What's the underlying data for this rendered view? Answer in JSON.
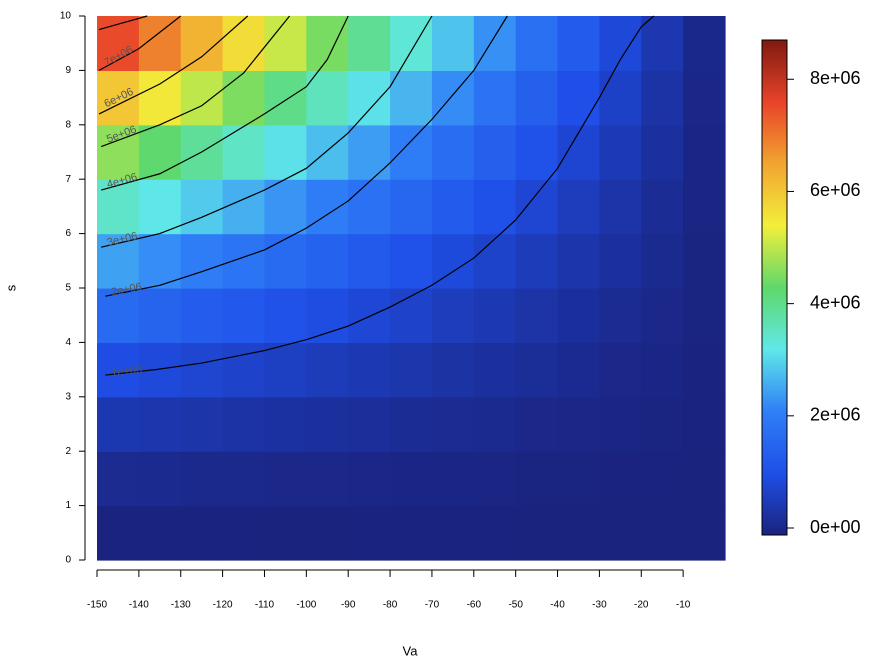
{
  "chart_data": {
    "type": "heatmap",
    "x_label": "Va",
    "y_label": "s",
    "x": [
      -145,
      -135,
      -125,
      -115,
      -105,
      -95,
      -85,
      -75,
      -65,
      -55,
      -45,
      -35,
      -25,
      -15,
      -5
    ],
    "y": [
      0.5,
      1.5,
      2.5,
      3.5,
      4.5,
      5.5,
      6.5,
      7.5,
      8.5,
      9.5
    ],
    "z": [
      [
        21000,
        19000,
        17000,
        16000,
        14000,
        13000,
        11000,
        9000,
        8000,
        7000,
        5000,
        4000,
        3000,
        1000,
        0
      ],
      [
        188000,
        173000,
        157000,
        142000,
        128000,
        113000,
        99000,
        85000,
        72000,
        59000,
        46000,
        34000,
        23000,
        12000,
        3000
      ],
      [
        522000,
        479000,
        437000,
        396000,
        354000,
        314000,
        276000,
        237000,
        200000,
        164000,
        128000,
        94000,
        64000,
        35000,
        9000
      ],
      [
        1023000,
        940000,
        856000,
        775000,
        695000,
        616000,
        540000,
        464000,
        392000,
        321000,
        250000,
        185000,
        125000,
        68000,
        18000
      ],
      [
        1691000,
        1553000,
        1415000,
        1282000,
        1148000,
        1019000,
        893000,
        767000,
        648000,
        531000,
        413000,
        306000,
        207000,
        112000,
        30000
      ],
      [
        2526000,
        2320000,
        2114000,
        1915000,
        1715000,
        1522000,
        1334000,
        1146000,
        968000,
        793000,
        617000,
        457000,
        309000,
        168000,
        45000
      ],
      [
        3528000,
        3241000,
        2953000,
        2674000,
        2396000,
        2125000,
        1863000,
        1601000,
        1352000,
        1107000,
        862000,
        638000,
        431000,
        234000,
        63000
      ],
      [
        4697000,
        4314000,
        3932000,
        3561000,
        3189000,
        2829000,
        2481000,
        2132000,
        1800000,
        1474000,
        1148000,
        849000,
        574000,
        312000,
        84000
      ],
      [
        6033000,
        5542000,
        5050000,
        4573000,
        4097000,
        3634000,
        3186000,
        2738000,
        2312000,
        1893000,
        1474000,
        1091000,
        737000,
        400000,
        108000
      ],
      [
        7536000,
        6922000,
        6308000,
        5713000,
        5117000,
        4540000,
        3980000,
        3420000,
        2888000,
        2365000,
        1841000,
        1363000,
        921000,
        500000,
        134000
      ]
    ],
    "xlim": [
      -150,
      0
    ],
    "ylim": [
      0,
      10
    ],
    "zlim": [
      0,
      8700000
    ],
    "xticks": [
      -150,
      -140,
      -130,
      -120,
      -110,
      -100,
      -90,
      -80,
      -70,
      -60,
      -50,
      -40,
      -30,
      -20,
      -10
    ],
    "yticks": [
      0,
      1,
      2,
      3,
      4,
      5,
      6,
      7,
      8,
      9,
      10
    ],
    "zticks": [
      {
        "value": 0,
        "label": "0e+00"
      },
      {
        "value": 2000000,
        "label": "2e+06"
      },
      {
        "value": 4000000,
        "label": "4e+06"
      },
      {
        "value": 6000000,
        "label": "6e+06"
      },
      {
        "value": 8000000,
        "label": "8e+06"
      }
    ],
    "colors": [
      "#1a237e",
      "#1f4fe8",
      "#2f7ff7",
      "#5fe8e8",
      "#5fd86a",
      "#f2ef3a",
      "#f2a430",
      "#e8432a",
      "#7f1a10"
    ],
    "contour_color": "#000000",
    "contours": [
      {
        "label": "1e+06",
        "x": [
          -148,
          -136,
          -125,
          -110,
          -100,
          -90,
          -80,
          -70,
          -60,
          -50,
          -40,
          -30,
          -25,
          -20,
          -17
        ],
        "y": [
          3.4,
          3.5,
          3.62,
          3.85,
          4.05,
          4.3,
          4.65,
          5.05,
          5.55,
          6.25,
          7.2,
          8.5,
          9.2,
          9.8,
          10
        ]
      },
      {
        "label": "2e+06",
        "x": [
          -148,
          -135,
          -125,
          -110,
          -100,
          -90,
          -80,
          -70,
          -60,
          -52
        ],
        "y": [
          4.85,
          5.05,
          5.3,
          5.7,
          6.1,
          6.6,
          7.3,
          8.1,
          9.0,
          10
        ]
      },
      {
        "label": "3e+06",
        "x": [
          -149,
          -135,
          -125,
          -110,
          -100,
          -90,
          -80,
          -70
        ],
        "y": [
          5.75,
          6.0,
          6.3,
          6.8,
          7.2,
          7.85,
          8.7,
          10
        ]
      },
      {
        "label": "4e+06",
        "x": [
          -149,
          -135,
          -125,
          -110,
          -100,
          -95,
          -90
        ],
        "y": [
          6.8,
          7.1,
          7.5,
          8.2,
          8.7,
          9.2,
          10
        ]
      },
      {
        "label": "5e+06",
        "x": [
          -149,
          -135,
          -125,
          -115,
          -104
        ],
        "y": [
          7.6,
          8.0,
          8.35,
          8.95,
          10
        ]
      },
      {
        "label": "6e+06",
        "x": [
          -149.5,
          -135,
          -125,
          -114
        ],
        "y": [
          8.2,
          8.75,
          9.25,
          10
        ]
      },
      {
        "label": "7e+06",
        "x": [
          -149.5,
          -140,
          -130
        ],
        "y": [
          9.0,
          9.4,
          10
        ]
      },
      {
        "x": [
          -149.5,
          -138
        ],
        "y": [
          9.75,
          10
        ]
      }
    ]
  }
}
